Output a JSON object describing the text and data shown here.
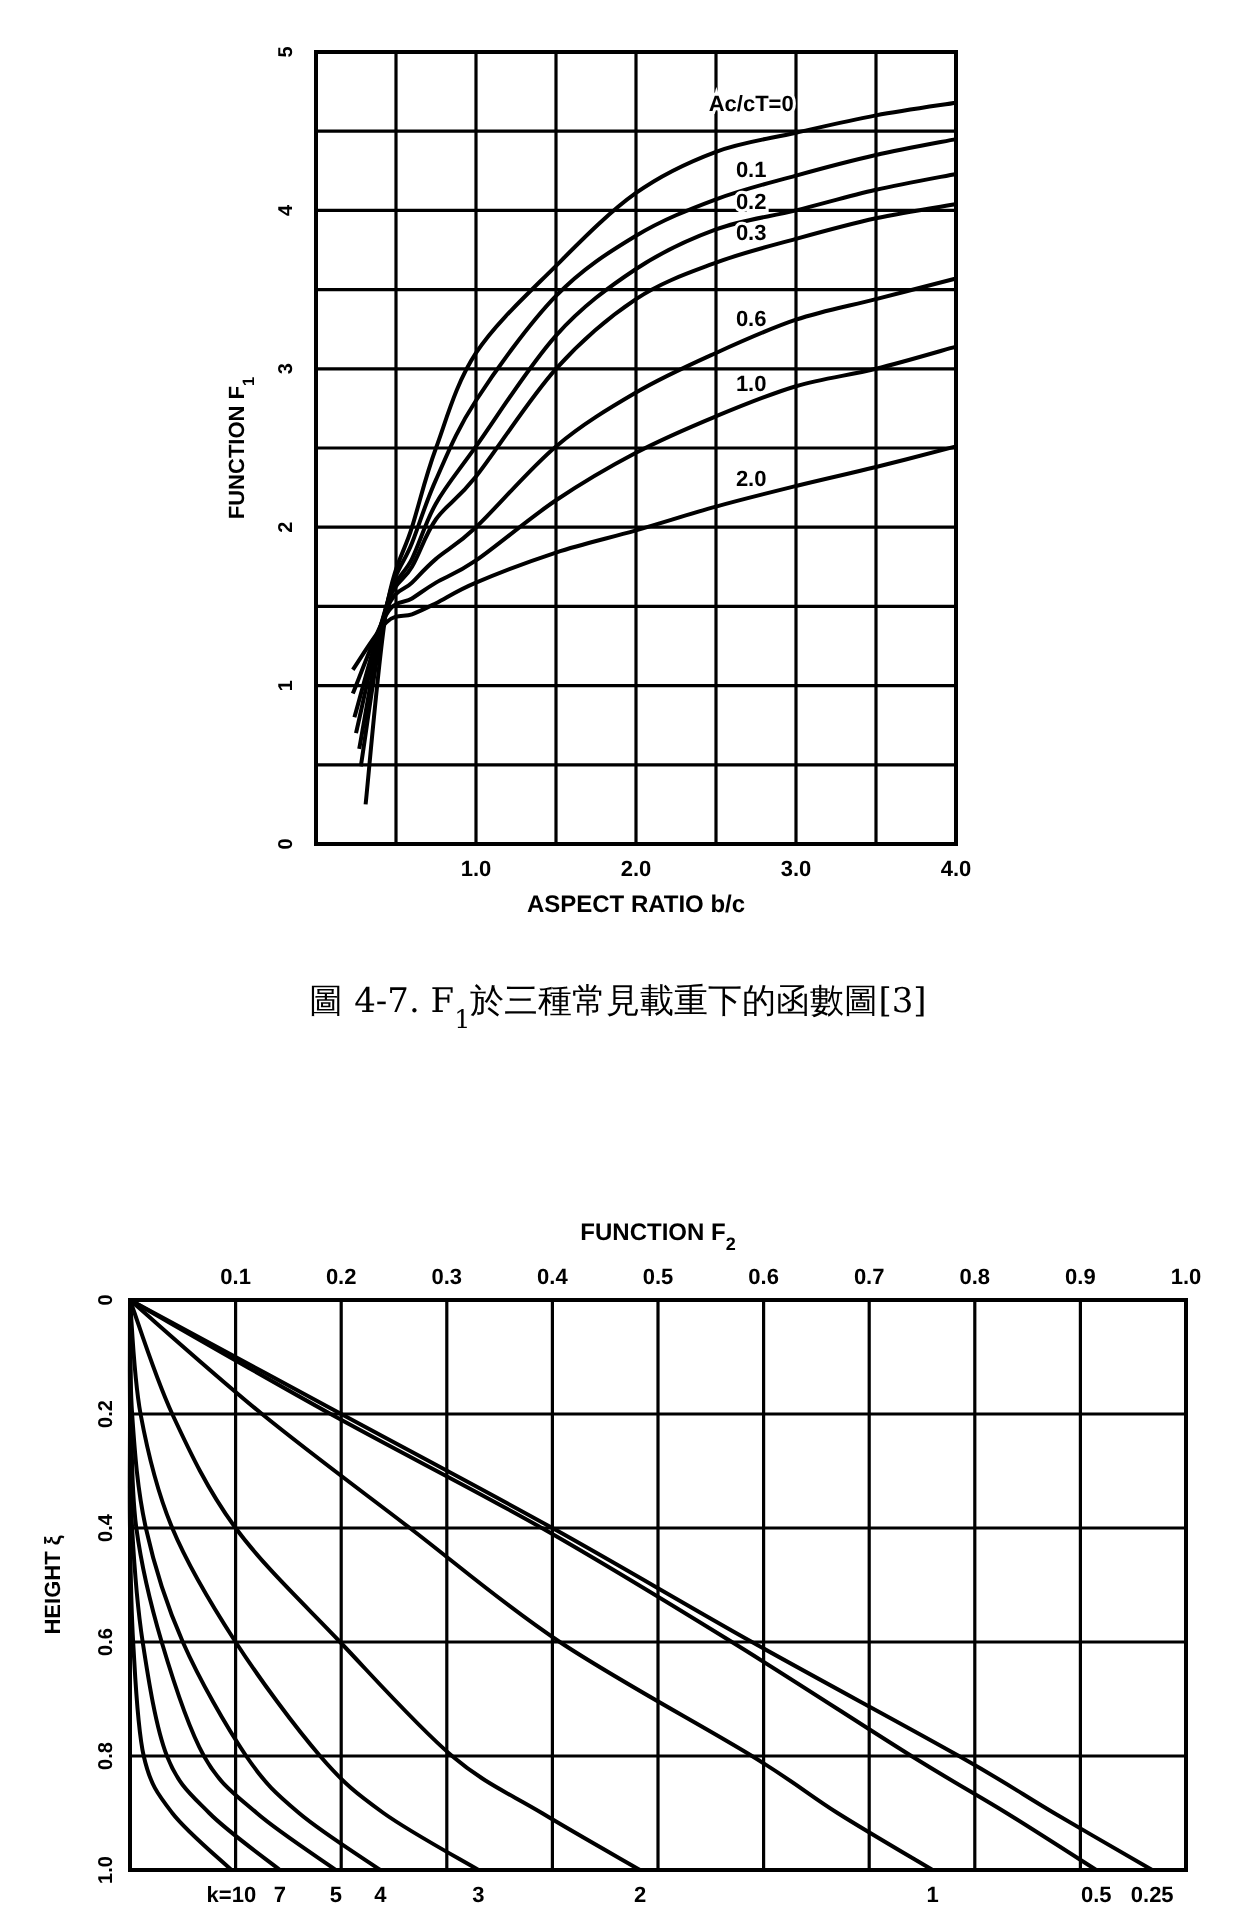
{
  "chart_data": [
    {
      "type": "line",
      "xlabel": "ASPECT RATIO b/c",
      "ylabel": "FUNCTION F$_{1}$",
      "xlim": [
        0,
        4
      ],
      "ylim": [
        0,
        5
      ],
      "grid": true,
      "legend": false,
      "xticks": [
        {
          "value": 0.5,
          "label": null
        },
        {
          "value": 1,
          "label": "1.0"
        },
        {
          "value": 1.5,
          "label": null
        },
        {
          "value": 2,
          "label": "2.0"
        },
        {
          "value": 2.5,
          "label": null
        },
        {
          "value": 3,
          "label": "3.0"
        },
        {
          "value": 3.5,
          "label": null
        },
        {
          "value": 4,
          "label": "4.0"
        }
      ],
      "yticks": [
        0,
        {
          "value": 0.5,
          "label": null
        },
        1,
        {
          "value": 1.5,
          "label": null
        },
        2,
        {
          "value": 2.5,
          "label": null
        },
        3,
        {
          "value": 3.5,
          "label": null
        },
        4,
        {
          "value": 4.5,
          "label": null
        },
        5
      ],
      "series": [
        {
          "name": "Ac/cT=0",
          "color": "#000000",
          "x": [
            0.31,
            0.44,
            0.6,
            0.75,
            1,
            1.5,
            2,
            2.5,
            3,
            3.5,
            4
          ],
          "values": [
            0.25,
            1.48,
            2.0,
            2.5,
            3.1,
            3.65,
            4.11,
            4.37,
            4.49,
            4.6,
            4.68
          ]
        },
        {
          "name": "0.1",
          "color": "#000000",
          "x": [
            0.28,
            0.44,
            0.6,
            0.75,
            1,
            1.5,
            2,
            2.5,
            3,
            3.5,
            4
          ],
          "values": [
            0.49,
            1.5,
            1.9,
            2.3,
            2.8,
            3.46,
            3.84,
            4.07,
            4.22,
            4.35,
            4.45
          ]
        },
        {
          "name": "0.2",
          "color": "#000000",
          "x": [
            0.27,
            0.44,
            0.6,
            0.75,
            1,
            1.5,
            2,
            2.5,
            3,
            3.5,
            4
          ],
          "values": [
            0.6,
            1.5,
            1.8,
            2.15,
            2.51,
            3.21,
            3.63,
            3.88,
            4.0,
            4.13,
            4.23
          ]
        },
        {
          "name": "0.3",
          "color": "#000000",
          "x": [
            0.25,
            0.44,
            0.6,
            0.75,
            1,
            1.5,
            2,
            2.5,
            3,
            3.5,
            4
          ],
          "values": [
            0.7,
            1.5,
            1.75,
            2.05,
            2.32,
            3.0,
            3.44,
            3.67,
            3.82,
            3.95,
            4.04
          ]
        },
        {
          "name": "0.6",
          "color": "#000000",
          "x": [
            0.24,
            0.44,
            0.6,
            0.75,
            1,
            1.5,
            2,
            2.5,
            3,
            3.5,
            4
          ],
          "values": [
            0.8,
            1.48,
            1.65,
            1.8,
            2.0,
            2.51,
            2.85,
            3.1,
            3.31,
            3.44,
            3.57
          ]
        },
        {
          "name": "1.0",
          "color": "#000000",
          "x": [
            0.23,
            0.44,
            0.6,
            0.75,
            1,
            1.5,
            2,
            2.5,
            3,
            3.5,
            4
          ],
          "values": [
            0.95,
            1.45,
            1.55,
            1.65,
            1.79,
            2.17,
            2.47,
            2.7,
            2.89,
            3.0,
            3.14
          ]
        },
        {
          "name": "2.0",
          "color": "#000000",
          "x": [
            0.23,
            0.44,
            0.6,
            0.75,
            1,
            1.5,
            2,
            2.5,
            3,
            3.5,
            4
          ],
          "values": [
            1.1,
            1.4,
            1.45,
            1.52,
            1.65,
            1.84,
            1.98,
            2.13,
            2.26,
            2.38,
            2.51
          ]
        }
      ],
      "annotations": [
        "圖 4-7. F$_{1}$於三種常見載重下的函數圖[3]"
      ]
    },
    {
      "type": "line",
      "xlabel": "FUNCTION F$_{2}$",
      "ylabel": "HEIGHT ξ",
      "xlim": [
        0,
        1
      ],
      "ylim": [
        1,
        0
      ],
      "grid": true,
      "legend": false,
      "xticks": [
        0.1,
        0.2,
        0.3,
        0.4,
        0.5,
        0.6,
        0.7,
        0.8,
        0.9,
        {
          "value": 1,
          "label": "1.0"
        }
      ],
      "yticks": [
        0,
        0.2,
        0.4,
        0.6,
        0.8,
        {
          "value": 1,
          "label": "1.0"
        }
      ],
      "series": [
        {
          "name": "k=10",
          "color": "#000000",
          "x": [
            0,
            0,
            0,
            0.003,
            0.013,
            0.04,
            0.096
          ],
          "values": [
            0,
            0.2,
            0.4,
            0.6,
            0.8,
            0.9,
            1
          ]
        },
        {
          "name": "7",
          "color": "#000000",
          "x": [
            0,
            0,
            0.002,
            0.012,
            0.035,
            0.075,
            0.142
          ],
          "values": [
            0,
            0.2,
            0.4,
            0.6,
            0.8,
            0.9,
            1
          ]
        },
        {
          "name": "5",
          "color": "#000000",
          "x": [
            0,
            0.001,
            0.006,
            0.03,
            0.07,
            0.12,
            0.195
          ],
          "values": [
            0,
            0.2,
            0.4,
            0.6,
            0.8,
            0.9,
            1
          ]
        },
        {
          "name": "4",
          "color": "#000000",
          "x": [
            0,
            0.002,
            0.015,
            0.05,
            0.11,
            0.16,
            0.237
          ],
          "values": [
            0,
            0.2,
            0.4,
            0.6,
            0.8,
            0.9,
            1
          ]
        },
        {
          "name": "3",
          "color": "#000000",
          "x": [
            0,
            0.01,
            0.04,
            0.1,
            0.18,
            0.24,
            0.33
          ],
          "values": [
            0,
            0.2,
            0.4,
            0.6,
            0.8,
            0.9,
            1
          ]
        },
        {
          "name": "2",
          "color": "#000000",
          "x": [
            0,
            0.04,
            0.1,
            0.199,
            0.305,
            0.39,
            0.483
          ],
          "values": [
            0,
            0.2,
            0.4,
            0.6,
            0.8,
            0.9,
            1
          ]
        },
        {
          "name": "1",
          "color": "#000000",
          "x": [
            0,
            0.125,
            0.265,
            0.407,
            0.589,
            0.67,
            0.76
          ],
          "values": [
            0,
            0.2,
            0.4,
            0.6,
            0.8,
            0.9,
            1
          ]
        },
        {
          "name": "0.5",
          "color": "#000000",
          "x": [
            0,
            0.19,
            0.39,
            0.57,
            0.74,
            0.83,
            0.915
          ],
          "values": [
            0,
            0.2,
            0.4,
            0.6,
            0.8,
            0.9,
            1
          ]
        },
        {
          "name": "0.25",
          "color": "#000000",
          "x": [
            0,
            0.2,
            0.4,
            0.589,
            0.785,
            0.875,
            0.968
          ],
          "values": [
            0,
            0.2,
            0.4,
            0.6,
            0.8,
            0.9,
            1
          ]
        }
      ]
    }
  ]
}
